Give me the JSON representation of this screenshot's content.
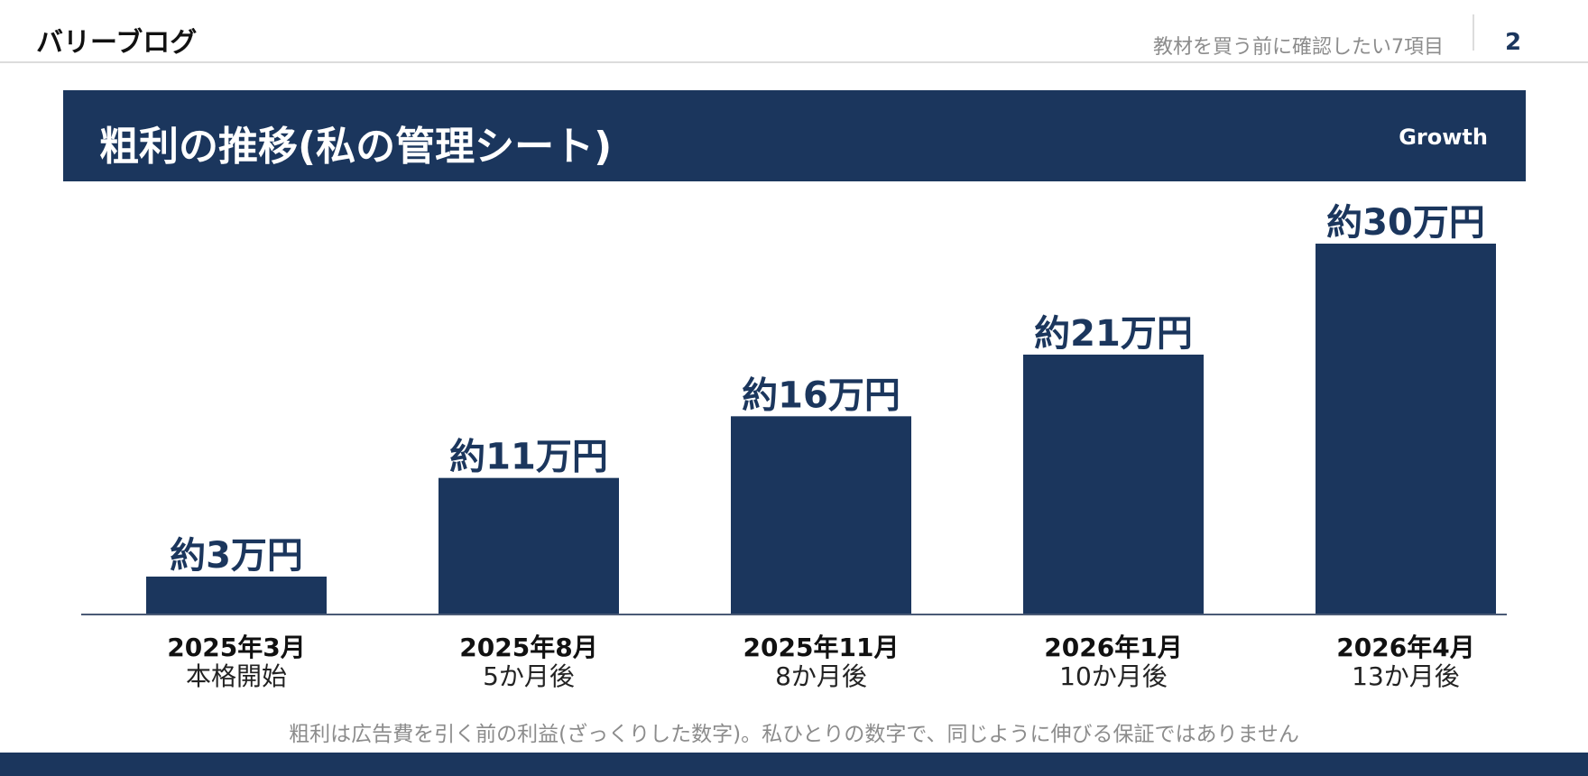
{
  "header": {
    "brand": "バリーブログ",
    "doc_title": "教材を買う前に確認したい7項目",
    "page_number": "2"
  },
  "slide": {
    "title": "粗利の推移(私の管理シート)",
    "tag": "Growth",
    "note": "粗利は広告費を引く前の利益(ざっくりした数字)。私ひとりの数字で、同じように伸びる保証ではありません"
  },
  "colors": {
    "brand_navy": "#1b365d",
    "muted_text": "#8c8c8c",
    "rule": "#dcdcdc"
  },
  "chart_data": {
    "type": "bar",
    "categories": [
      "2025年3月",
      "2025年8月",
      "2025年11月",
      "2026年1月",
      "2026年4月"
    ],
    "sublabels": [
      "本格開始",
      "5か月後",
      "8か月後",
      "10か月後",
      "13か月後"
    ],
    "values": [
      3,
      11,
      16,
      21,
      30
    ],
    "value_labels": [
      "約3万円",
      "約11万円",
      "約16万円",
      "約21万円",
      "約30万円"
    ],
    "ylim": [
      0,
      30
    ],
    "grid": false,
    "legend": "none"
  }
}
